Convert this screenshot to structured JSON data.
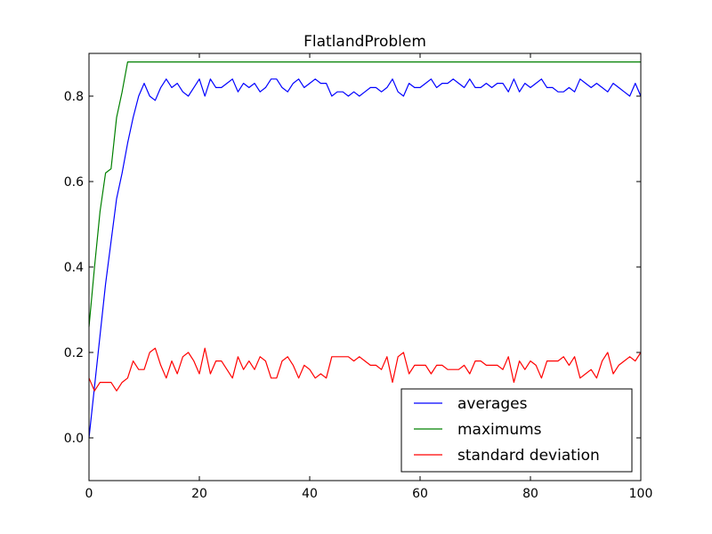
{
  "chart_data": {
    "type": "line",
    "title": "FlatlandProblem",
    "xlabel": "",
    "ylabel": "",
    "xlim": [
      0,
      100
    ],
    "ylim": [
      -0.1,
      0.9
    ],
    "xticks": [
      0,
      20,
      40,
      60,
      80,
      100
    ],
    "yticks": [
      0.0,
      0.2,
      0.4,
      0.6,
      0.8
    ],
    "ytick_labels": [
      "0.0",
      "0.2",
      "0.4",
      "0.6",
      "0.8"
    ],
    "legend": "lower-right",
    "grid": false,
    "x": [
      0,
      1,
      2,
      3,
      4,
      5,
      6,
      7,
      8,
      9,
      10,
      11,
      12,
      13,
      14,
      15,
      16,
      17,
      18,
      19,
      20,
      21,
      22,
      23,
      24,
      25,
      26,
      27,
      28,
      29,
      30,
      31,
      32,
      33,
      34,
      35,
      36,
      37,
      38,
      39,
      40,
      41,
      42,
      43,
      44,
      45,
      46,
      47,
      48,
      49,
      50,
      51,
      52,
      53,
      54,
      55,
      56,
      57,
      58,
      59,
      60,
      61,
      62,
      63,
      64,
      65,
      66,
      67,
      68,
      69,
      70,
      71,
      72,
      73,
      74,
      75,
      76,
      77,
      78,
      79,
      80,
      81,
      82,
      83,
      84,
      85,
      86,
      87,
      88,
      89,
      90,
      91,
      92,
      93,
      94,
      95,
      96,
      97,
      98,
      99,
      100
    ],
    "series": [
      {
        "name": "averages",
        "color": "#0000ff",
        "values": [
          0.0,
          0.12,
          0.24,
          0.36,
          0.46,
          0.56,
          0.62,
          0.69,
          0.75,
          0.8,
          0.83,
          0.8,
          0.79,
          0.82,
          0.84,
          0.82,
          0.83,
          0.81,
          0.8,
          0.82,
          0.84,
          0.8,
          0.84,
          0.82,
          0.82,
          0.83,
          0.84,
          0.81,
          0.83,
          0.82,
          0.83,
          0.81,
          0.82,
          0.84,
          0.84,
          0.82,
          0.81,
          0.83,
          0.84,
          0.82,
          0.83,
          0.84,
          0.83,
          0.83,
          0.8,
          0.81,
          0.81,
          0.8,
          0.81,
          0.8,
          0.81,
          0.82,
          0.82,
          0.81,
          0.82,
          0.84,
          0.81,
          0.8,
          0.83,
          0.82,
          0.82,
          0.83,
          0.84,
          0.82,
          0.83,
          0.83,
          0.84,
          0.83,
          0.82,
          0.84,
          0.82,
          0.82,
          0.83,
          0.82,
          0.83,
          0.83,
          0.81,
          0.84,
          0.81,
          0.83,
          0.82,
          0.83,
          0.84,
          0.82,
          0.82,
          0.81,
          0.81,
          0.82,
          0.81,
          0.84,
          0.83,
          0.82,
          0.83,
          0.82,
          0.81,
          0.83,
          0.82,
          0.81,
          0.8,
          0.83,
          0.8
        ]
      },
      {
        "name": "maximums",
        "color": "#008000",
        "values": [
          0.26,
          0.4,
          0.53,
          0.62,
          0.63,
          0.75,
          0.81,
          0.88,
          0.88,
          0.88,
          0.88,
          0.88,
          0.88,
          0.88,
          0.88,
          0.88,
          0.88,
          0.88,
          0.88,
          0.88,
          0.88,
          0.88,
          0.88,
          0.88,
          0.88,
          0.88,
          0.88,
          0.88,
          0.88,
          0.88,
          0.88,
          0.88,
          0.88,
          0.88,
          0.88,
          0.88,
          0.88,
          0.88,
          0.88,
          0.88,
          0.88,
          0.88,
          0.88,
          0.88,
          0.88,
          0.88,
          0.88,
          0.88,
          0.88,
          0.88,
          0.88,
          0.88,
          0.88,
          0.88,
          0.88,
          0.88,
          0.88,
          0.88,
          0.88,
          0.88,
          0.88,
          0.88,
          0.88,
          0.88,
          0.88,
          0.88,
          0.88,
          0.88,
          0.88,
          0.88,
          0.88,
          0.88,
          0.88,
          0.88,
          0.88,
          0.88,
          0.88,
          0.88,
          0.88,
          0.88,
          0.88,
          0.88,
          0.88,
          0.88,
          0.88,
          0.88,
          0.88,
          0.88,
          0.88,
          0.88,
          0.88,
          0.88,
          0.88,
          0.88,
          0.88,
          0.88,
          0.88,
          0.88,
          0.88,
          0.88,
          0.88
        ]
      },
      {
        "name": "standard deviation",
        "color": "#ff0000",
        "values": [
          0.14,
          0.11,
          0.13,
          0.13,
          0.13,
          0.11,
          0.13,
          0.14,
          0.18,
          0.16,
          0.16,
          0.2,
          0.21,
          0.17,
          0.14,
          0.18,
          0.15,
          0.19,
          0.2,
          0.18,
          0.15,
          0.21,
          0.15,
          0.18,
          0.18,
          0.16,
          0.14,
          0.19,
          0.16,
          0.18,
          0.16,
          0.19,
          0.18,
          0.14,
          0.14,
          0.18,
          0.19,
          0.17,
          0.14,
          0.17,
          0.16,
          0.14,
          0.15,
          0.14,
          0.19,
          0.19,
          0.19,
          0.19,
          0.18,
          0.19,
          0.18,
          0.17,
          0.17,
          0.16,
          0.19,
          0.13,
          0.19,
          0.2,
          0.15,
          0.17,
          0.17,
          0.17,
          0.15,
          0.17,
          0.17,
          0.16,
          0.16,
          0.16,
          0.17,
          0.15,
          0.18,
          0.18,
          0.17,
          0.17,
          0.17,
          0.16,
          0.19,
          0.13,
          0.18,
          0.16,
          0.18,
          0.17,
          0.14,
          0.18,
          0.18,
          0.18,
          0.19,
          0.17,
          0.19,
          0.14,
          0.15,
          0.16,
          0.14,
          0.18,
          0.2,
          0.15,
          0.17,
          0.18,
          0.19,
          0.18,
          0.2
        ]
      }
    ]
  }
}
